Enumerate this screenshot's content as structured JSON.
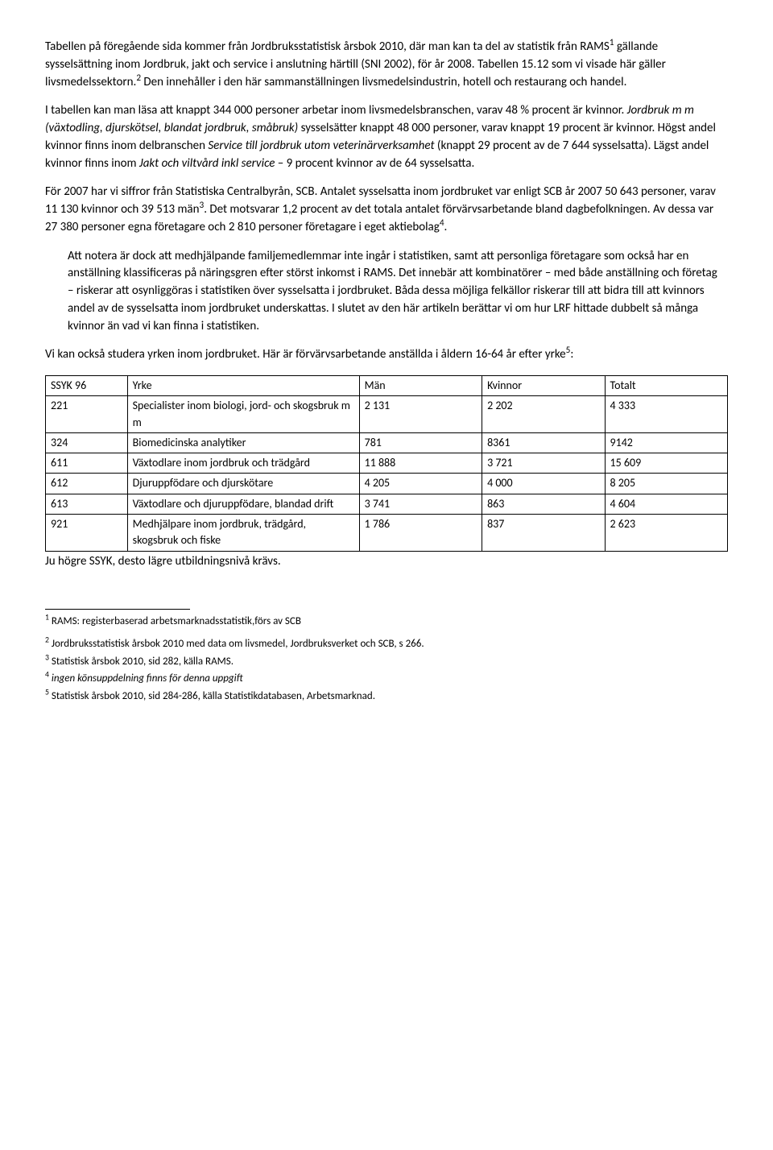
{
  "paragraphs": {
    "p1_a": "Tabellen på föregående sida kommer från Jordbruksstatistisk årsbok 2010, där man kan ta del av statistik från RAMS",
    "p1_sup1": "1",
    "p1_b": " gällande sysselsättning inom Jordbruk, jakt och service i anslutning härtill (SNI 2002), för år 2008. Tabellen 15.12 som vi visade här gäller livsmedelssektorn.",
    "p1_sup2": "2",
    "p1_c": " Den innehåller i den här sammanställningen livsmedelsindustrin, hotell och restaurang och handel.",
    "p2_a": "I tabellen kan man läsa att knappt 344 000 personer arbetar inom livsmedelsbranschen, varav 48 % procent är kvinnor. ",
    "p2_i1": "Jordbruk m m (växtodling, djurskötsel, blandat jordbruk, småbruk)",
    "p2_b": " sysselsätter knappt 48 000 personer, varav knappt 19 procent är kvinnor. Högst andel kvinnor finns inom delbranschen ",
    "p2_i2": "Service till jordbruk utom veterinärverksamhet",
    "p2_c": " (knappt 29 procent av de 7 644 sysselsatta). Lägst andel kvinnor finns inom ",
    "p2_i3": "Jakt och viltvård inkl service",
    "p2_d": " – 9 procent kvinnor av de 64 sysselsatta.",
    "p3_a": "För 2007 har vi siffror från Statistiska Centralbyrån, SCB. Antalet sysselsatta inom jordbruket var enligt SCB år 2007 50 643 personer, varav 11 130 kvinnor och 39 513 män",
    "p3_sup3": "3",
    "p3_b": ". Det motsvarar 1,2 procent av det totala antalet förvärvsarbetande bland dagbefolkningen. Av dessa var 27 380 personer egna företagare och 2 810 personer företagare i eget aktiebolag",
    "p3_sup4": "4",
    "p3_c": ".",
    "p4": "Att notera är dock att medhjälpande familjemedlemmar inte ingår i statistiken, samt att personliga företagare som också har en anställning klassificeras på näringsgren efter störst inkomst i RAMS. Det innebär att kombinatörer – med både anställning och företag – riskerar att osynliggöras i statistiken över sysselsatta i jordbruket. Båda dessa möjliga felkällor riskerar till att bidra till att kvinnors andel av de sysselsatta inom jordbruket underskattas. I slutet av den här artikeln berättar vi om hur LRF hittade dubbelt så många kvinnor än vad vi kan finna i statistiken.",
    "p5_a": "Vi kan också studera yrken inom jordbruket. Här är förvärvsarbetande anställda i åldern 16-64 år efter yrke",
    "p5_sup5": "5",
    "p5_b": ":"
  },
  "table": {
    "headers": [
      "SSYK 96",
      "Yrke",
      "Män",
      "Kvinnor",
      "Totalt"
    ],
    "rows": [
      [
        "221",
        "Specialister inom biologi, jord- och skogsbruk m m",
        "2 131",
        "2 202",
        "4 333"
      ],
      [
        "324",
        "Biomedicinska analytiker",
        "781",
        "8361",
        "9142"
      ],
      [
        "611",
        "Växtodlare inom jordbruk och trädgård",
        "11 888",
        "3 721",
        "15 609"
      ],
      [
        "612",
        "Djuruppfödare och djurskötare",
        "4 205",
        "4 000",
        "8 205"
      ],
      [
        "613",
        "Växtodlare och djuruppfödare, blandad drift",
        "3 741",
        "863",
        "4 604"
      ],
      [
        "921",
        "Medhjälpare inom jordbruk, trädgård, skogsbruk och fiske",
        "1 786",
        "837",
        "2 623"
      ]
    ],
    "col_widths": [
      "12%",
      "34%",
      "18%",
      "18%",
      "18%"
    ]
  },
  "table_caption": "Ju högre SSYK, desto lägre utbildningsnivå krävs.",
  "footnotes": {
    "f1_sup": "1",
    "f1": " RAMS: registerbaserad arbetsmarknadsstatistik,förs av SCB",
    "f2_sup": "2",
    "f2": " Jordbruksstatistisk årsbok 2010 med data om livsmedel, Jordbruksverket och SCB, s 266.",
    "f3_sup": "3",
    "f3": " Statistisk årsbok 2010, sid 282, källa RAMS.",
    "f4_sup": "4",
    "f4_i": " ingen könsuppdelning finns för denna uppgift",
    "f5_sup": "5",
    "f5": " Statistisk årsbok 2010, sid 284-286, källa Statistikdatabasen, Arbetsmarknad."
  }
}
